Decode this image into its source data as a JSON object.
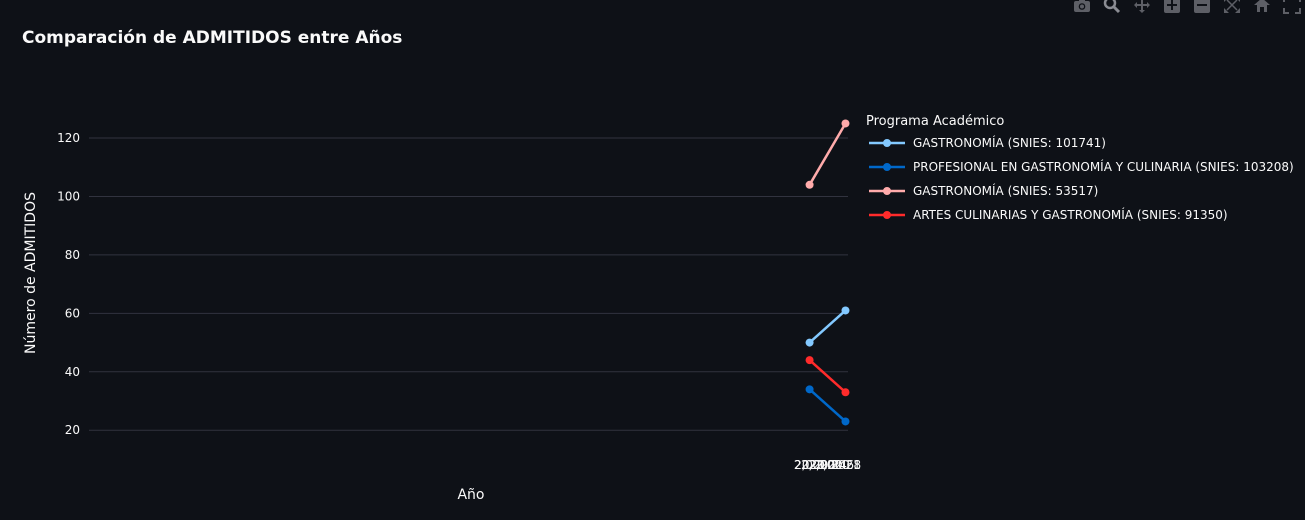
{
  "modebar": {
    "icons": [
      "camera-icon",
      "zoom-icon",
      "pan-icon",
      "zoom-in-icon",
      "zoom-out-icon",
      "autoscale-icon",
      "home-icon",
      "fullscreen-icon"
    ]
  },
  "colors": {
    "background": "#0e1117",
    "grid": "#31333f",
    "text": "#fafafa"
  },
  "chart_data": {
    "type": "line",
    "title": "Comparación de ADMITIDOS entre Años",
    "xlabel": "Año",
    "ylabel": "Número de ADMITIDOS",
    "xlim": [
      1999.93,
      2021.07
    ],
    "ylim": [
      17,
      132
    ],
    "x_tick_values": [
      2020,
      2020.2,
      2020.4,
      2020.6,
      2020.8,
      2021
    ],
    "x_tick_labels": [
      "2020",
      "2,020.2",
      "2,020.4",
      "2,020.6",
      "2,020.8",
      "2021"
    ],
    "y_ticks": [
      20,
      40,
      60,
      80,
      100,
      120
    ],
    "grid": true,
    "legend_title": "Programa Académico",
    "legend_position": "right",
    "series": [
      {
        "name": "GASTRONOMÍA (SNIES: 101741)",
        "color": "#83c9ff",
        "x": [
          2020,
          2021
        ],
        "y": [
          50,
          61
        ]
      },
      {
        "name": "PROFESIONAL EN GASTRONOMÍA Y CULINARIA (SNIES: 103208)",
        "color": "#0068c9",
        "x": [
          2020,
          2021
        ],
        "y": [
          34,
          23
        ]
      },
      {
        "name": "GASTRONOMÍA (SNIES: 53517)",
        "color": "#ffabab",
        "x": [
          2020,
          2021
        ],
        "y": [
          104,
          125
        ]
      },
      {
        "name": "ARTES CULINARIAS Y GASTRONOMÍA (SNIES: 91350)",
        "color": "#ff2b2b",
        "x": [
          2020,
          2021
        ],
        "y": [
          44,
          33
        ]
      }
    ]
  }
}
